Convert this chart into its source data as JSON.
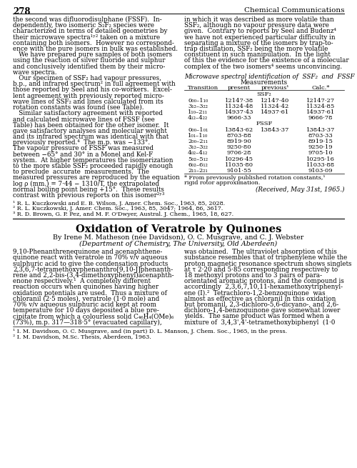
{
  "page_number": "278",
  "background_color": "#ffffff",
  "top_left_text": [
    "the second was difluorodisulphane (FSSF).  In-",
    "dependently, two isomeric S₂F₂ species were",
    "characterized in terms of detailed geometries by",
    "their microwave spectra¹ʸ² taken on a mixture",
    "containing both isomers.  However no correspond-",
    "ence with the pure isomers in bulk was established.",
    "   We have prepared pure samples of both isomers",
    "using the reaction of silver fluoride and sulphur",
    "and conclusively identified them by their micro-",
    "wave spectra.",
    "   Our specimen of SSF₂ had vapour pressures,",
    "b.p., and infrared spectrum² in full agreement with",
    "those reported by Seel and his co-workers.  Excel-",
    "lent agreement with previously reported micro-",
    "wave lines of SSF₂ and lines calculated from its",
    "rotation constants was found (see Table).",
    "   Similar satisfactory agreement with reported",
    "and calculated microwave lines of FSSF (see",
    "Table) has been obtained for the other isomer.  It",
    "gave satisfactory analyses and molecular weight",
    "and its infrared spectrum was identical with that",
    "previously reported.⁴  The m.p. was −133°.",
    "The vapour pressure of FSSF was measured",
    "between −65° and 30° in a Monel and Kel-F",
    "system.  At higher temperatures the isomerization",
    "to the more stable SSF₂ proceeded rapidly enough",
    "to preclude  accurate  measurements.  The",
    "measured pressures are reproduced by the equation",
    "log ρ (mm.) = 7·44 − 1310/T, the extrapolated",
    "normal boiling point being +15°.  These results",
    "contrast with previous reports on this isomer²ʸ³"
  ],
  "top_right_text": [
    "in which it was described as more volatile than",
    "SSF₂, although no vapour pressure data were",
    "given.  Contrary to reports by Seel and Budenz⁴",
    "we have not experienced particular difficulty in",
    "separating a mixture of the isomers by trap-to-",
    "trap distillation, SSF₂ being the more volatile",
    "constituent in such manipulation.  In the light",
    "of this the evidence for the existence of a molecular",
    "complex of the two isomers⁴ seems unconvincing."
  ],
  "col_headers": [
    "Transition",
    "present",
    "previous¹",
    "Calc.*"
  ],
  "ssf2_rows": [
    [
      "0₀₀–1₁₀",
      "12147·38",
      "12147·40",
      "12147·27"
    ],
    [
      "3₁₂–3₂₂",
      "11324·48",
      "11324·42",
      "11324·85"
    ],
    [
      "1₁₀–2₁₁",
      "14937·43",
      "14937·61",
      "14937·61"
    ],
    [
      "4₁₂–4₂₂",
      "9666·33",
      "",
      "9666·78"
    ]
  ],
  "fssf_rows": [
    [
      "0₀₀–1₀₁",
      "13843·62",
      "13843·37",
      "13843·37"
    ],
    [
      "1₀₁–1₁₀",
      "8703·88",
      "",
      "8703·33"
    ],
    [
      "2₀₀–2₁₁",
      "8919·90",
      "",
      "8919·15"
    ],
    [
      "3₁₂–3₂₂",
      "9250·80",
      "",
      "9250·19"
    ],
    [
      "4₀₂–4₁₂",
      "9706·28",
      "",
      "9705·10"
    ],
    [
      "5₀₂–5₁₂",
      "10296·45",
      "",
      "10295·16"
    ],
    [
      "6₀₂–6₁₂",
      "11035·80",
      "",
      "11033·88"
    ],
    [
      "2₁₁–2₂₁",
      "9101·55",
      "",
      "9103·09"
    ]
  ],
  "table_footnote1": "* From previously published rotation constants,¹",
  "table_footnote2": "rigid rotor approximation.",
  "received": "(Received, May 31st, 1965.)",
  "footnotes_top": [
    "¹ R. L. Kuczkowski and E. B. Wilson, J. Amer. Chem. Soc., 1963, 85, 2028.",
    "² R. L. Kuczkowski, J. Amer. Chem. Soc., 1963, 85, 3047; 1964, 86, 3617.",
    "³ R. D. Brown, G. P. Pez, and M. F. O'Dwyer, Austral. J. Chem., 1965, 18, 627."
  ],
  "section_title": "Oxidation of Veratrole by Quinones",
  "authors_line": "By Irene M. Matheson (née Davidson), O. C. Musgrave, and C. J. Webster",
  "department_line": "(Department of Chemistry, The University, Old Aberdeen)",
  "body_left": [
    "9,10-Phenanthrenequinone and acenaphthene-",
    "quinone react with veratrole in 70% v/v aqueous",
    "sulphuric acid to give the condensation products",
    "2,3,6,7-tetramethoxyphenanthro[9,10-J]phenanth-",
    "rene and 2,2-bis-(3,4-dimethoxyphenyl)acenaphth-",
    "enone respectively.¹  A completely different",
    "reaction occurs when quinones having higher",
    "oxidation potentials are used.  Thus a mixture of",
    "chloranil (2·5 moles), veratrole (1·0 mole) and",
    "70% v/v aqueous sulphuric acid kept at room",
    "temperature for 10 days deposited a blue pre-",
    "cipitate from which a colourless solid C₄₆H₄(OMe)₆",
    "(73%), m.p. 317—318·5° (evacuated capillary),"
  ],
  "body_right": [
    "was obtained.  The ultraviolet absorption of this",
    "substance resembles that of triphenylene while the",
    "proton magnetic resonance spectrum shows singlets",
    "at τ 2·20 and 5·85 corresponding respectively to",
    "18 methoxyl protons and to 3 pairs of para-",
    "orientated aromatic protons, and the compound is",
    "accordingly  2,3,6,7,10,11-hexamethoxytriphenyl-",
    "ene (I).²  Tetrachloro-1,2-benzoquinone  was",
    "almost as effective as chloranil in this oxidation",
    "but bromanil, 2,3-dichloro-5,6-dicyano-, and 2,6-",
    "dichloro-1,4-benzoquinone gave somewhat lower",
    "yields.  The same product was formed when a",
    "mixture of  3,4,3',4'-tetramethoxybiphenyl  (1·0"
  ],
  "footnotes_bottom": [
    "¹ I. M. Davidson, O. C. Musgrave, and (in part) D. L. Manson, J. Chem. Soc., 1965, in the press.",
    "² I. M. Davidson, M.Sc. Thesis, Aberdeen, 1963."
  ]
}
